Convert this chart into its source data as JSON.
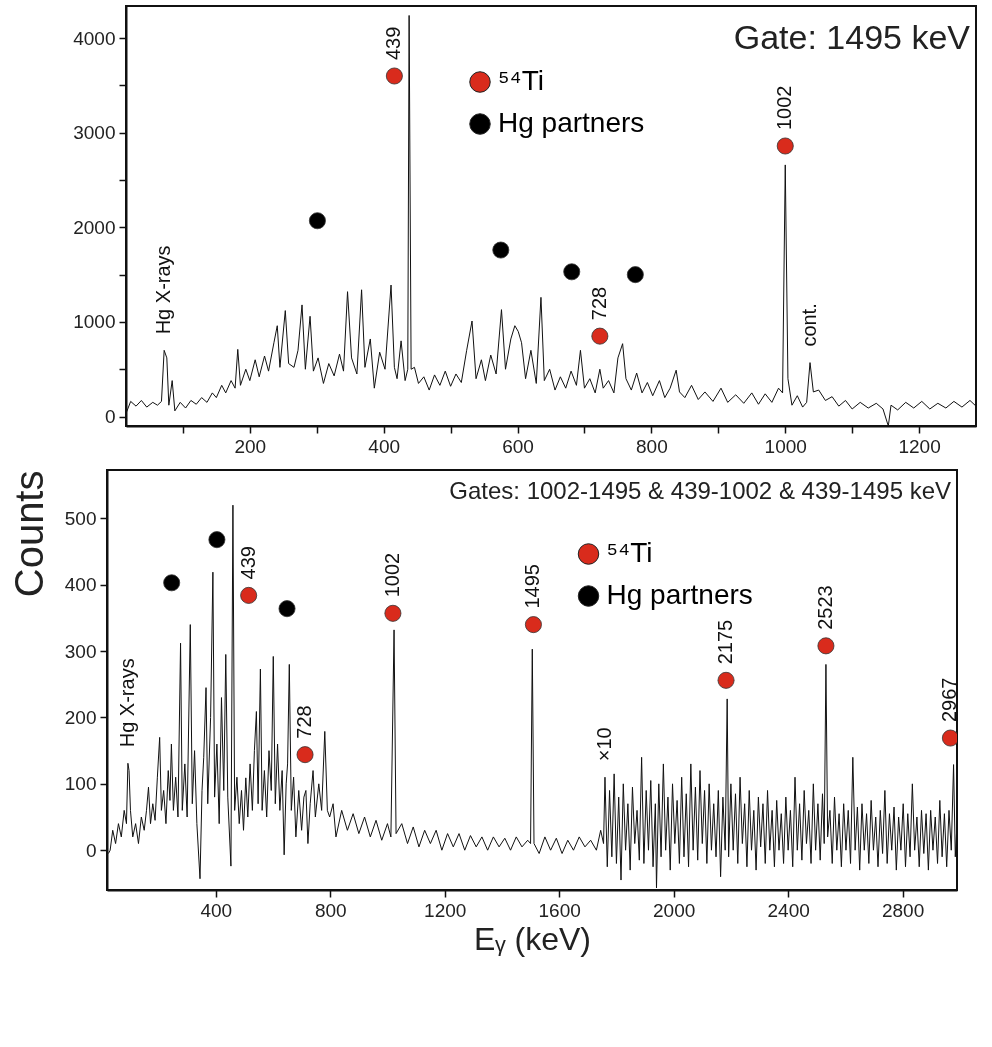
{
  "chart_data": [
    {
      "type": "line",
      "title": "Gate: 1495 keV",
      "xlim": [
        15,
        1285
      ],
      "ylim": [
        -100,
        4340
      ],
      "xticks": [
        {
          "value": 100,
          "label": null
        },
        200,
        {
          "value": 300,
          "label": null
        },
        400,
        {
          "value": 500,
          "label": null
        },
        600,
        {
          "value": 700,
          "label": null
        },
        800,
        {
          "value": 900,
          "label": null
        },
        1000,
        {
          "value": 1100,
          "label": null
        },
        1200
      ],
      "yticks": [
        0,
        {
          "value": 500,
          "label": null
        },
        1000,
        {
          "value": 1500,
          "label": null
        },
        2000,
        {
          "value": 2500,
          "label": null
        },
        3000,
        {
          "value": 3500,
          "label": null
        },
        4000
      ],
      "legend": "top",
      "annotations": [
        {
          "text": "439",
          "x": 416,
          "y": 3600
        },
        {
          "text": "1002",
          "x": 1000,
          "y": 2860
        },
        {
          "text": "728",
          "x": 723,
          "y": 850
        },
        {
          "text": "Hg X-rays",
          "x": 72,
          "y": 700
        },
        {
          "text": "cont.",
          "x": 1037,
          "y": 570
        }
      ],
      "series": [
        {
          "color": "#111111",
          "x": [
            16,
            22,
            30,
            38,
            46,
            55,
            62,
            68,
            72,
            76,
            79,
            84,
            88,
            96,
            104,
            112,
            120,
            128,
            136,
            144,
            150,
            158,
            164,
            172,
            178,
            182,
            186,
            194,
            200,
            208,
            214,
            222,
            228,
            236,
            241,
            245,
            253,
            258,
            266,
            272,
            278,
            283,
            290,
            295,
            302,
            310,
            318,
            326,
            334,
            340,
            346,
            352,
            360,
            367,
            372,
            380,
            386,
            394,
            402,
            411,
            416,
            420,
            426,
            432,
            436,
            438,
            441,
            446,
            452,
            460,
            468,
            476,
            484,
            492,
            500,
            508,
            516,
            524,
            532,
            538,
            546,
            552,
            560,
            568,
            576,
            582,
            590,
            596,
            601,
            606,
            612,
            620,
            628,
            635,
            640,
            648,
            656,
            664,
            672,
            680,
            688,
            694,
            700,
            708,
            716,
            723,
            728,
            736,
            744,
            750,
            757,
            762,
            770,
            778,
            786,
            794,
            802,
            812,
            820,
            828,
            837,
            842,
            850,
            860,
            870,
            880,
            892,
            904,
            914,
            926,
            938,
            950,
            960,
            970,
            980,
            990,
            996,
            1000,
            1004,
            1010,
            1018,
            1026,
            1032,
            1037,
            1042,
            1050,
            1060,
            1070,
            1080,
            1090,
            1100,
            1112,
            1124,
            1136,
            1146,
            1154,
            1158,
            1168,
            1180,
            1192,
            1204,
            1216,
            1228,
            1240,
            1252,
            1264,
            1276,
            1285
          ],
          "values": [
            50,
            160,
            110,
            170,
            100,
            150,
            120,
            160,
            700,
            620,
            120,
            380,
            60,
            150,
            90,
            170,
            130,
            200,
            150,
            250,
            200,
            330,
            250,
            380,
            300,
            710,
            330,
            500,
            380,
            600,
            420,
            640,
            480,
            780,
            960,
            520,
            1120,
            560,
            520,
            700,
            1180,
            500,
            1060,
            480,
            620,
            350,
            560,
            430,
            660,
            480,
            1320,
            620,
            450,
            1340,
            520,
            820,
            300,
            680,
            500,
            1390,
            520,
            400,
            800,
            380,
            500,
            4240,
            500,
            520,
            350,
            420,
            280,
            440,
            330,
            480,
            320,
            450,
            360,
            700,
            1010,
            400,
            600,
            380,
            650,
            450,
            1130,
            500,
            820,
            960,
            900,
            780,
            400,
            700,
            350,
            1260,
            380,
            500,
            280,
            420,
            300,
            480,
            330,
            700,
            300,
            400,
            250,
            500,
            300,
            380,
            250,
            620,
            770,
            400,
            280,
            460,
            250,
            360,
            220,
            380,
            200,
            300,
            490,
            260,
            200,
            330,
            180,
            260,
            160,
            300,
            150,
            230,
            140,
            250,
            130,
            240,
            150,
            300,
            250,
            2660,
            400,
            120,
            220,
            100,
            150,
            570,
            260,
            280,
            170,
            210,
            110,
            170,
            80,
            150,
            90,
            140,
            80,
            -100,
            120,
            70,
            150,
            90,
            160,
            80,
            140,
            90,
            160,
            100,
            170,
            110
          ]
        },
        {
          "type": "scatter",
          "name": "⁵⁴Ti",
          "color": "#d92b1c",
          "marker": "circle",
          "x": [
            416,
            1000,
            723
          ],
          "values": [
            3600,
            2860,
            850
          ]
        },
        {
          "type": "scatter",
          "name": "Hg partners",
          "color": "#000000",
          "marker": "circle",
          "x": [
            301,
            575,
            681,
            776
          ],
          "values": [
            2070,
            1760,
            1530,
            1500
          ]
        }
      ]
    },
    {
      "type": "line",
      "title": "Gates: 1002-1495 & 439-1002 & 439-1495  keV",
      "xlabel": "Eᵧ (keV)",
      "ylabel": "Counts",
      "xlim": [
        20,
        2990
      ],
      "ylim": [
        -60,
        573
      ],
      "xticks": [
        400,
        800,
        1200,
        1600,
        2000,
        2400,
        2800
      ],
      "yticks": [
        0,
        100,
        200,
        300,
        400,
        500
      ],
      "legend": "top right",
      "annotations": [
        {
          "text": "439",
          "x": 515,
          "y": 384
        },
        {
          "text": "1002",
          "x": 1019,
          "y": 357
        },
        {
          "text": "728",
          "x": 712,
          "y": 144
        },
        {
          "text": "1495",
          "x": 1510,
          "y": 340
        },
        {
          "text": "2175",
          "x": 2183,
          "y": 256
        },
        {
          "text": "2523",
          "x": 2532,
          "y": 308
        },
        {
          "text": "2967",
          "x": 2967,
          "y": 169
        },
        {
          "text": "Hg X-rays",
          "x": 93,
          "y": 131
        },
        {
          "text": "×10",
          "x": 1760,
          "y": 110
        }
      ],
      "series": [
        {
          "color": "#111111",
          "x": [
            25,
            31,
            40,
            50,
            60,
            70,
            80,
            88,
            93,
            97,
            102,
            110,
            120,
            130,
            140,
            150,
            158,
            165,
            172,
            180,
            188,
            196,
            204,
            210,
            218,
            226,
            234,
            240,
            245,
            252,
            260,
            268,
            277,
            283,
            292,
            300,
            311,
            318,
            326,
            334,
            345,
            352,
            358,
            366,
            372,
            382,
            390,
            396,
            404,
            412,
            420,
            428,
            435,
            442,
            453,
            460,
            466,
            474,
            482,
            490,
            497,
            505,
            512,
            520,
            528,
            535,
            542,
            548,
            556,
            562,
            570,
            578,
            586,
            594,
            601,
            608,
            616,
            624,
            632,
            639,
            646,
            651,
            657,
            664,
            672,
            680,
            690,
            700,
            708,
            715,
            722,
            730,
            740,
            748,
            760,
            770,
            781,
            790,
            798,
            810,
            820,
            840,
            860,
            880,
            900,
            920,
            940,
            960,
            980,
            1000,
            1012,
            1023,
            1030,
            1050,
            1070,
            1090,
            1110,
            1130,
            1150,
            1170,
            1190,
            1210,
            1230,
            1250,
            1270,
            1290,
            1310,
            1330,
            1350,
            1370,
            1390,
            1410,
            1430,
            1450,
            1470,
            1490,
            1500,
            1506,
            1512,
            1530,
            1550,
            1570,
            1590,
            1610,
            1630,
            1650,
            1670,
            1690,
            1710,
            1730,
            1745,
            1755,
            1760,
            1768,
            1776,
            1784,
            1792,
            1800,
            1808,
            1816,
            1824,
            1832,
            1840,
            1848,
            1856,
            1864,
            1872,
            1880,
            1888,
            1896,
            1904,
            1912,
            1920,
            1928,
            1936,
            1940,
            1948,
            1956,
            1964,
            1972,
            1980,
            1988,
            1996,
            2004,
            2012,
            2020,
            2028,
            2036,
            2044,
            2052,
            2060,
            2068,
            2076,
            2084,
            2092,
            2100,
            2108,
            2116,
            2124,
            2132,
            2140,
            2148,
            2156,
            2164,
            2172,
            2180,
            2187,
            2192,
            2200,
            2208,
            2216,
            2224,
            2232,
            2240,
            2248,
            2256,
            2264,
            2272,
            2280,
            2288,
            2296,
            2304,
            2312,
            2320,
            2328,
            2336,
            2344,
            2352,
            2360,
            2368,
            2376,
            2384,
            2392,
            2400,
            2408,
            2416,
            2424,
            2432,
            2440,
            2448,
            2456,
            2464,
            2472,
            2480,
            2488,
            2496,
            2504,
            2512,
            2520,
            2526,
            2532,
            2538,
            2546,
            2554,
            2562,
            2570,
            2578,
            2586,
            2594,
            2602,
            2610,
            2618,
            2626,
            2634,
            2642,
            2650,
            2658,
            2666,
            2674,
            2682,
            2690,
            2698,
            2706,
            2714,
            2722,
            2730,
            2738,
            2746,
            2754,
            2762,
            2770,
            2778,
            2786,
            2794,
            2802,
            2810,
            2818,
            2826,
            2834,
            2842,
            2850,
            2858,
            2866,
            2874,
            2882,
            2890,
            2898,
            2906,
            2914,
            2922,
            2930,
            2938,
            2946,
            2954,
            2962,
            2970,
            2978,
            2984,
            2990
          ],
          "values": [
            -5,
            0,
            30,
            10,
            40,
            20,
            60,
            40,
            131,
            120,
            60,
            20,
            40,
            10,
            50,
            30,
            60,
            95,
            40,
            70,
            45,
            110,
            170,
            60,
            90,
            40,
            120,
            75,
            160,
            60,
            110,
            50,
            312,
            60,
            130,
            50,
            340,
            70,
            150,
            40,
            -43,
            90,
            140,
            245,
            70,
            200,
            419,
            80,
            160,
            40,
            230,
            90,
            295,
            80,
            -24,
            520,
            60,
            110,
            40,
            90,
            30,
            109,
            50,
            130,
            60,
            150,
            209,
            70,
            273,
            60,
            120,
            50,
            150,
            90,
            292,
            70,
            160,
            60,
            120,
            -7,
            100,
            130,
            280,
            60,
            110,
            20,
            90,
            30,
            80,
            90,
            10,
            70,
            120,
            50,
            100,
            60,
            179,
            60,
            50,
            70,
            20,
            60,
            30,
            55,
            25,
            50,
            20,
            45,
            15,
            40,
            20,
            332,
            25,
            40,
            10,
            35,
            5,
            30,
            10,
            30,
            0,
            25,
            5,
            25,
            0,
            22,
            5,
            20,
            0,
            20,
            5,
            18,
            0,
            20,
            5,
            15,
            10,
            303,
            10,
            -5,
            20,
            0,
            18,
            -5,
            15,
            0,
            20,
            5,
            15,
            0,
            30,
            10,
            110,
            -25,
            90,
            -10,
            115,
            -20,
            80,
            -45,
            100,
            0,
            70,
            -30,
            95,
            10,
            60,
            -15,
            140,
            -20,
            90,
            0,
            105,
            -25,
            70,
            -57,
            100,
            -10,
            130,
            0,
            80,
            -30,
            100,
            10,
            75,
            -20,
            110,
            -10,
            85,
            -25,
            130,
            0,
            95,
            -15,
            120,
            10,
            90,
            -20,
            100,
            0,
            70,
            -10,
            90,
            -40,
            80,
            0,
            228,
            -10,
            100,
            0,
            85,
            -20,
            110,
            10,
            70,
            -25,
            90,
            0,
            60,
            -30,
            80,
            5,
            70,
            -20,
            90,
            0,
            60,
            -25,
            75,
            0,
            55,
            -20,
            80,
            0,
            60,
            -25,
            110,
            0,
            70,
            -15,
            90,
            10,
            60,
            -20,
            100,
            0,
            70,
            -15,
            85,
            10,
            280,
            20,
            60,
            -20,
            80,
            0,
            55,
            -25,
            70,
            0,
            60,
            -20,
            140,
            0,
            65,
            -30,
            70,
            0,
            55,
            -20,
            75,
            0,
            50,
            -25,
            60,
            -5,
            90,
            -20,
            55,
            0,
            65,
            -30,
            50,
            0,
            70,
            -25,
            55,
            -10,
            100,
            0,
            50,
            -25,
            60,
            -5,
            55,
            -30,
            60,
            0,
            50,
            -20,
            75,
            -10,
            55,
            -25,
            60,
            0,
            129,
            -10,
            40
          ]
        },
        {
          "type": "scatter",
          "name": "⁵⁴Ti",
          "color": "#d92b1c",
          "marker": "circle",
          "x": [
            515,
            1019,
            712,
            1510,
            2183,
            2532,
            2967
          ],
          "values": [
            384,
            357,
            144,
            340,
            256,
            308,
            169
          ]
        },
        {
          "type": "scatter",
          "name": "Hg partners",
          "color": "#000000",
          "marker": "circle",
          "x": [
            246,
            404,
            649
          ],
          "values": [
            403,
            468,
            364
          ]
        }
      ]
    }
  ]
}
